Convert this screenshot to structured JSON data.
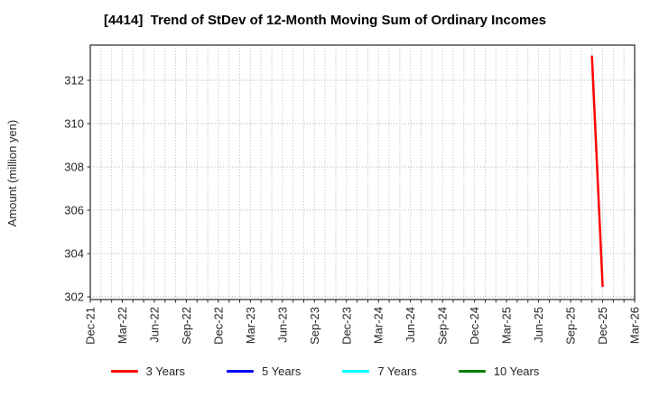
{
  "chart_data": {
    "type": "line",
    "title": "[4414]  Trend of StDev of 12-Month Moving Sum of Ordinary Incomes",
    "ylabel": "Amount (million yen)",
    "y_ticks": [
      302,
      304,
      306,
      308,
      310,
      312
    ],
    "ylim": [
      301.875,
      313.625
    ],
    "x_tick_labels": [
      "Dec-21",
      "Mar-22",
      "Jun-22",
      "Sep-22",
      "Dec-22",
      "Mar-23",
      "Jun-23",
      "Sep-23",
      "Dec-23",
      "Mar-24",
      "Jun-24",
      "Sep-24",
      "Dec-24",
      "Mar-25",
      "Jun-25",
      "Sep-25",
      "Dec-25",
      "Mar-26"
    ],
    "months_per_label": 3,
    "total_months": 51,
    "grid": true,
    "legend_position": "bottom",
    "colors": {
      "grid": "#aaaaaa",
      "axis": "#262626",
      "text": "#262626"
    },
    "series": [
      {
        "name": "3 Years",
        "color": "#ff0000",
        "points": [
          {
            "date": "Nov-25",
            "month_index": 47,
            "value": 313.1
          },
          {
            "date": "Dec-25",
            "month_index": 48,
            "value": 302.5
          }
        ]
      },
      {
        "name": "5 Years",
        "color": "#0000ff",
        "points": []
      },
      {
        "name": "7 Years",
        "color": "#00ffff",
        "points": []
      },
      {
        "name": "10 Years",
        "color": "#008000",
        "points": []
      }
    ]
  }
}
